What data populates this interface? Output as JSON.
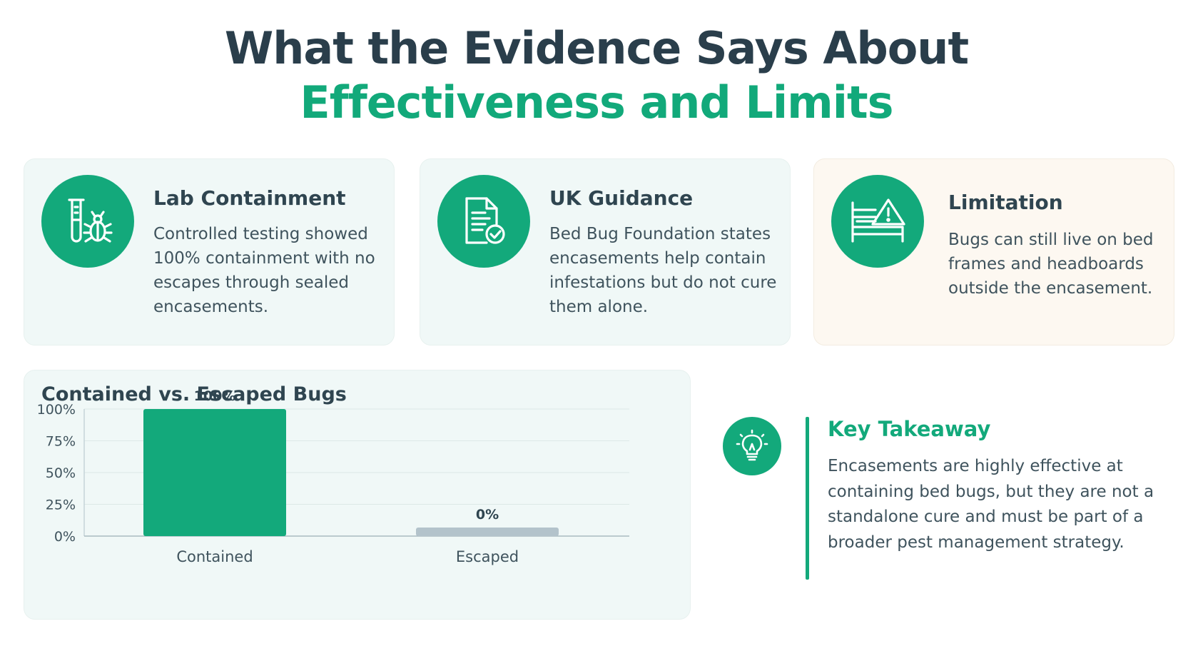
{
  "title": {
    "line1": "What the Evidence Says About",
    "line2": "Effectiveness and Limits"
  },
  "cards": [
    {
      "icon": "test-tube-bug-icon",
      "title": "Lab Containment",
      "body": "Controlled testing showed 100% containment with no escapes through sealed encasements."
    },
    {
      "icon": "document-check-icon",
      "title": "UK Guidance",
      "body": "Bed Bug Foundation states encasements help contain infestations but do not cure them alone."
    },
    {
      "icon": "bed-warning-icon",
      "title": "Limitation",
      "body": "Bugs can still live on bed frames and headboards outside the encasement."
    }
  ],
  "takeaway": {
    "icon": "lightbulb-icon",
    "title": "Key Takeaway",
    "body": "Encasements are highly effective at containing bed bugs, but they are not a standalone cure and must be part of a broader pest management strategy."
  },
  "colors": {
    "accent": "#13a97b",
    "title_dark": "#2a3e4b",
    "bar_contained": "#13a97b",
    "bar_escaped": "#b3c3cb"
  },
  "chart_data": {
    "type": "bar",
    "title": "Contained vs. Escaped Bugs",
    "categories": [
      "Contained",
      "Escaped"
    ],
    "values": [
      100,
      0
    ],
    "data_labels": [
      "100%",
      "0%"
    ],
    "ylim": [
      0,
      100
    ],
    "yticks": [
      0,
      25,
      50,
      75,
      100
    ],
    "ytick_labels": [
      "0%",
      "25%",
      "50%",
      "75%",
      "100%"
    ],
    "grid": true,
    "legend": "none"
  }
}
